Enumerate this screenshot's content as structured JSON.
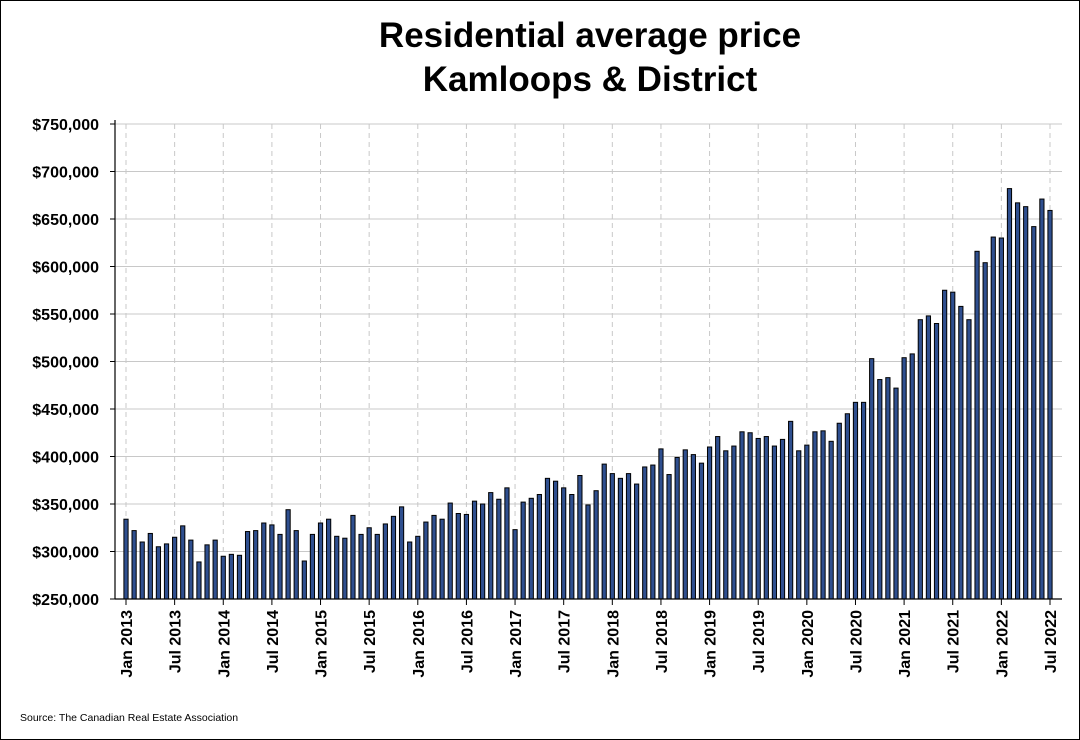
{
  "title_lines": [
    "Residential average price",
    "Kamloops & District"
  ],
  "source": "Source: The Canadian Real Estate Association",
  "colors": {
    "bar_fill": "#2f4f8f",
    "bar_stroke": "#000000",
    "grid": "#c8c8c8",
    "vgrid": "#c8c8c8"
  },
  "chart_data": {
    "type": "bar",
    "title": "Residential average price\nKamloops & District",
    "xlabel": "",
    "ylabel": "",
    "ylim": [
      250000,
      750000
    ],
    "y_ticks": [
      250000,
      300000,
      350000,
      400000,
      450000,
      500000,
      550000,
      600000,
      650000,
      700000,
      750000
    ],
    "y_tick_labels": [
      "$250,000",
      "$300,000",
      "$350,000",
      "$400,000",
      "$450,000",
      "$500,000",
      "$550,000",
      "$600,000",
      "$650,000",
      "$700,000",
      "$750,000"
    ],
    "x_tick_labels": [
      "Jan 2013",
      "Jul 2013",
      "Jan 2014",
      "Jul 2014",
      "Jan 2015",
      "Jul 2015",
      "Jan 2016",
      "Jul 2016",
      "Jan 2017",
      "Jul 2017",
      "Jan 2018",
      "Jul 2018",
      "Jan 2019",
      "Jul 2019",
      "Jan 2020",
      "Jul 2020",
      "Jan 2021",
      "Jul 2021",
      "Jan 2022",
      "Jul 2022"
    ],
    "horizontal_grid": true,
    "vertical_grid": "dashed",
    "legend": "none",
    "series": [
      {
        "start": "2013-01",
        "frequency": "monthly",
        "values": [
          334000,
          322000,
          310000,
          319000,
          305000,
          308000,
          315000,
          327000,
          312000,
          289000,
          307000,
          312000,
          295000,
          297000,
          296000,
          321000,
          322000,
          330000,
          328000,
          318000,
          344000,
          322000,
          290000,
          318000,
          330000,
          334000,
          316000,
          314000,
          338000,
          318000,
          325000,
          318000,
          329000,
          337000,
          347000,
          310000,
          316000,
          331000,
          338000,
          334000,
          351000,
          340000,
          339000,
          353000,
          350000,
          362000,
          355000,
          367000,
          323000,
          352000,
          356000,
          360000,
          377000,
          374000,
          367000,
          360000,
          380000,
          349000,
          364000,
          392000,
          382000,
          377000,
          382000,
          371000,
          389000,
          391000,
          408000,
          381000,
          399000,
          407000,
          402000,
          393000,
          410000,
          421000,
          406000,
          411000,
          426000,
          425000,
          419000,
          421000,
          411000,
          418000,
          437000,
          406000,
          412000,
          426000,
          427000,
          416000,
          435000,
          445000,
          457000,
          457000,
          503000,
          481000,
          483000,
          472000,
          504000,
          508000,
          544000,
          548000,
          540000,
          575000,
          573000,
          558000,
          544000,
          616000,
          604000,
          631000,
          630000,
          682000,
          667000,
          663000,
          642000,
          671000,
          659000
        ]
      }
    ]
  }
}
